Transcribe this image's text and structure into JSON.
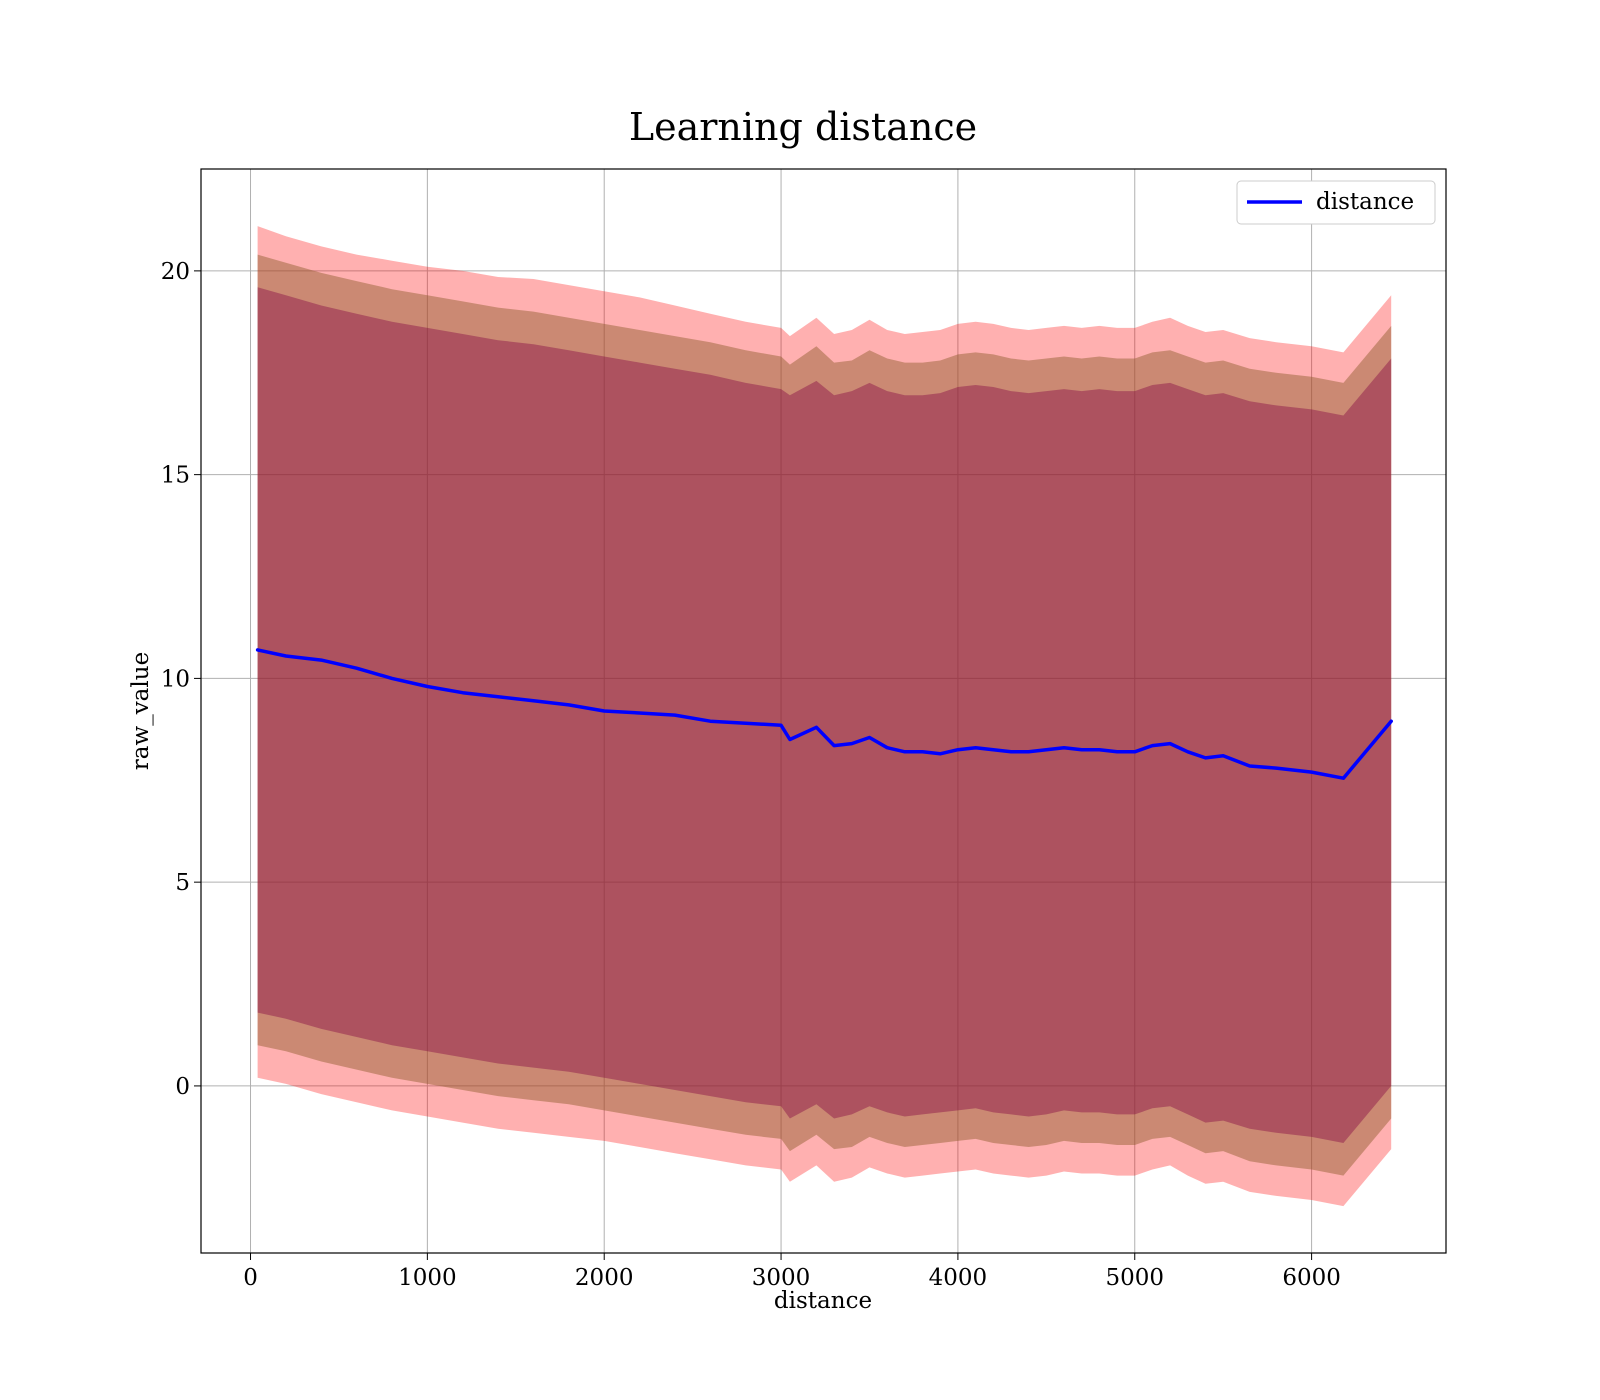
{
  "chart_data": {
    "type": "line",
    "title": "Learning distance",
    "xlabel": "distance",
    "ylabel": "raw_value",
    "xlim": [
      -280,
      6760
    ],
    "ylim": [
      -4.1,
      22.5
    ],
    "xticks": [
      0,
      1000,
      2000,
      3000,
      4000,
      5000,
      6000
    ],
    "yticks": [
      0,
      5,
      10,
      15,
      20
    ],
    "grid": true,
    "legend_position": "top-right",
    "colors": {
      "line": "#0000ff",
      "outer_band": "#ff0000",
      "middle_band": "#8b5a2b",
      "inner_band": "#800040"
    },
    "series": [
      {
        "name": "distance",
        "x": [
          40,
          200,
          400,
          600,
          800,
          1000,
          1200,
          1400,
          1600,
          1800,
          2000,
          2200,
          2400,
          2600,
          2800,
          3000,
          3050,
          3200,
          3300,
          3400,
          3500,
          3600,
          3700,
          3800,
          3900,
          4000,
          4100,
          4200,
          4300,
          4400,
          4500,
          4600,
          4700,
          4800,
          4900,
          5000,
          5100,
          5200,
          5300,
          5400,
          5500,
          5650,
          5800,
          6000,
          6180,
          6450
        ],
        "y": [
          10.7,
          10.55,
          10.45,
          10.25,
          10.0,
          9.8,
          9.65,
          9.55,
          9.45,
          9.35,
          9.2,
          9.15,
          9.1,
          8.95,
          8.9,
          8.85,
          8.5,
          8.8,
          8.35,
          8.4,
          8.55,
          8.3,
          8.2,
          8.2,
          8.15,
          8.25,
          8.3,
          8.25,
          8.2,
          8.2,
          8.25,
          8.3,
          8.25,
          8.25,
          8.2,
          8.2,
          8.35,
          8.4,
          8.2,
          8.05,
          8.1,
          7.85,
          7.8,
          7.7,
          7.55,
          8.95
        ],
        "outer_band_upper": [
          21.1,
          20.85,
          20.6,
          20.4,
          20.25,
          20.1,
          20.0,
          19.85,
          19.8,
          19.65,
          19.5,
          19.35,
          19.15,
          18.95,
          18.75,
          18.6,
          18.4,
          18.85,
          18.45,
          18.55,
          18.8,
          18.55,
          18.45,
          18.5,
          18.55,
          18.7,
          18.75,
          18.7,
          18.6,
          18.55,
          18.6,
          18.65,
          18.6,
          18.65,
          18.6,
          18.6,
          18.75,
          18.85,
          18.65,
          18.5,
          18.55,
          18.35,
          18.25,
          18.15,
          18.0,
          19.4
        ],
        "outer_band_lower": [
          0.2,
          0.05,
          -0.2,
          -0.4,
          -0.6,
          -0.75,
          -0.9,
          -1.05,
          -1.15,
          -1.25,
          -1.35,
          -1.5,
          -1.65,
          -1.8,
          -1.95,
          -2.05,
          -2.35,
          -1.95,
          -2.35,
          -2.25,
          -2.0,
          -2.15,
          -2.25,
          -2.2,
          -2.15,
          -2.1,
          -2.05,
          -2.15,
          -2.2,
          -2.25,
          -2.2,
          -2.1,
          -2.15,
          -2.15,
          -2.2,
          -2.2,
          -2.05,
          -1.95,
          -2.2,
          -2.4,
          -2.35,
          -2.6,
          -2.7,
          -2.8,
          -2.95,
          -1.55
        ],
        "middle_band_upper": [
          20.4,
          20.2,
          19.95,
          19.75,
          19.55,
          19.4,
          19.25,
          19.1,
          19.0,
          18.85,
          18.7,
          18.55,
          18.4,
          18.25,
          18.05,
          17.9,
          17.7,
          18.15,
          17.75,
          17.8,
          18.05,
          17.85,
          17.75,
          17.75,
          17.8,
          17.95,
          18.0,
          17.95,
          17.85,
          17.8,
          17.85,
          17.9,
          17.85,
          17.9,
          17.85,
          17.85,
          18.0,
          18.05,
          17.9,
          17.75,
          17.8,
          17.6,
          17.5,
          17.4,
          17.25,
          18.65
        ],
        "middle_band_lower": [
          1.0,
          0.85,
          0.6,
          0.4,
          0.2,
          0.05,
          -0.1,
          -0.25,
          -0.35,
          -0.45,
          -0.6,
          -0.75,
          -0.9,
          -1.05,
          -1.2,
          -1.3,
          -1.6,
          -1.2,
          -1.55,
          -1.5,
          -1.25,
          -1.4,
          -1.5,
          -1.45,
          -1.4,
          -1.35,
          -1.3,
          -1.4,
          -1.45,
          -1.5,
          -1.45,
          -1.35,
          -1.4,
          -1.4,
          -1.45,
          -1.45,
          -1.3,
          -1.25,
          -1.45,
          -1.65,
          -1.6,
          -1.85,
          -1.95,
          -2.05,
          -2.2,
          -0.8
        ],
        "inner_band_upper": [
          19.6,
          19.4,
          19.15,
          18.95,
          18.75,
          18.6,
          18.45,
          18.3,
          18.2,
          18.05,
          17.9,
          17.75,
          17.6,
          17.45,
          17.25,
          17.1,
          16.95,
          17.3,
          16.95,
          17.05,
          17.25,
          17.05,
          16.95,
          16.95,
          17.0,
          17.15,
          17.2,
          17.15,
          17.05,
          17.0,
          17.05,
          17.1,
          17.05,
          17.1,
          17.05,
          17.05,
          17.2,
          17.25,
          17.1,
          16.95,
          17.0,
          16.8,
          16.7,
          16.6,
          16.45,
          17.85
        ],
        "inner_band_lower": [
          1.8,
          1.65,
          1.4,
          1.2,
          1.0,
          0.85,
          0.7,
          0.55,
          0.45,
          0.35,
          0.2,
          0.05,
          -0.1,
          -0.25,
          -0.4,
          -0.5,
          -0.8,
          -0.45,
          -0.8,
          -0.7,
          -0.5,
          -0.65,
          -0.75,
          -0.7,
          -0.65,
          -0.6,
          -0.55,
          -0.65,
          -0.7,
          -0.75,
          -0.7,
          -0.6,
          -0.65,
          -0.65,
          -0.7,
          -0.7,
          -0.55,
          -0.5,
          -0.7,
          -0.9,
          -0.85,
          -1.05,
          -1.15,
          -1.25,
          -1.4,
          0.0
        ]
      }
    ]
  }
}
